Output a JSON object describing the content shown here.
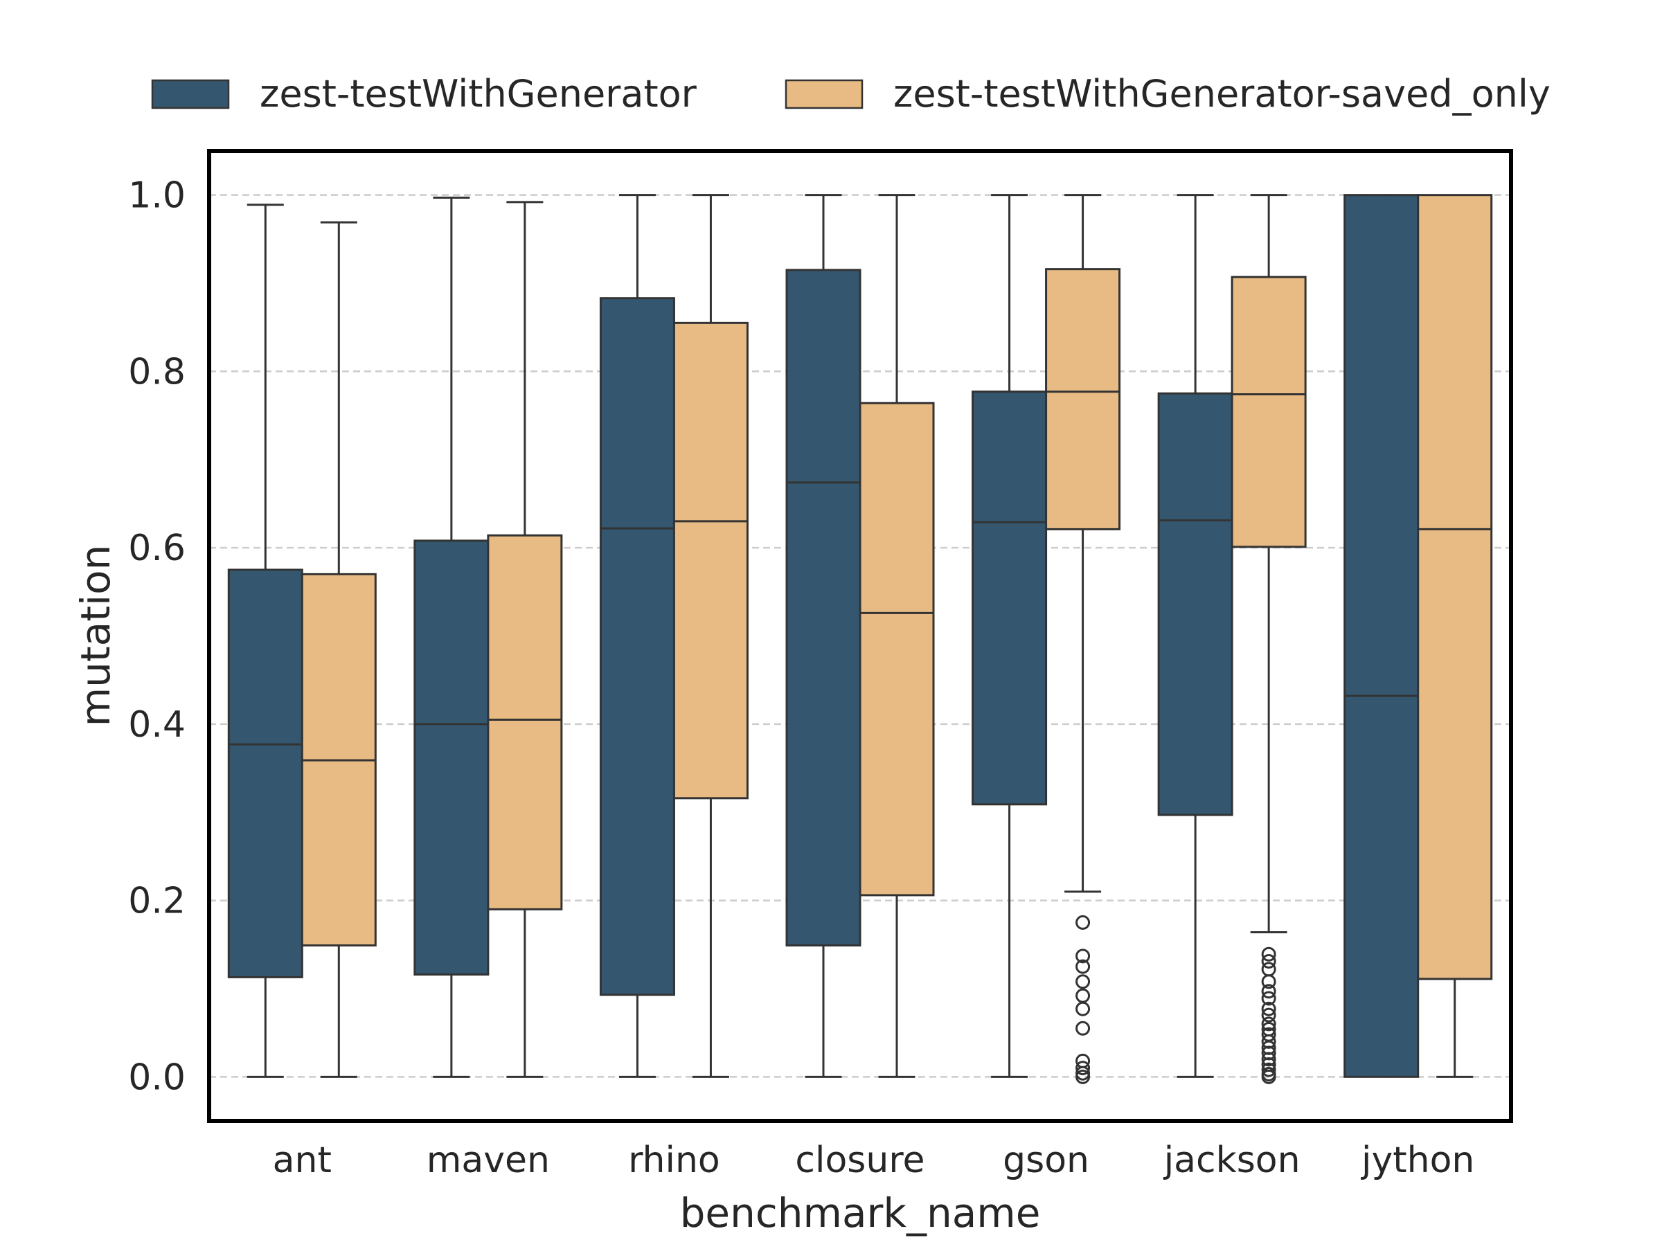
{
  "chart_data": {
    "type": "box",
    "xlabel": "benchmark_name",
    "ylabel": "mutation",
    "ylim": [
      -0.05,
      1.05
    ],
    "yticks": [
      "0.0",
      "0.2",
      "0.4",
      "0.6",
      "0.8",
      "1.0"
    ],
    "grid": "y-dashed",
    "legend_position": "top",
    "categories": [
      "ant",
      "maven",
      "rhino",
      "closure",
      "gson",
      "jackson",
      "jython"
    ],
    "series": [
      {
        "name": "zest-testWithGenerator",
        "color": "#34576f",
        "boxes": [
          {
            "whisker_low": 0.0,
            "q1": 0.113,
            "median": 0.377,
            "q3": 0.575,
            "whisker_high": 0.989,
            "outliers": []
          },
          {
            "whisker_low": 0.0,
            "q1": 0.116,
            "median": 0.4,
            "q3": 0.608,
            "whisker_high": 0.997,
            "outliers": []
          },
          {
            "whisker_low": 0.0,
            "q1": 0.093,
            "median": 0.622,
            "q3": 0.883,
            "whisker_high": 1.0,
            "outliers": []
          },
          {
            "whisker_low": 0.0,
            "q1": 0.149,
            "median": 0.674,
            "q3": 0.915,
            "whisker_high": 1.0,
            "outliers": []
          },
          {
            "whisker_low": 0.0,
            "q1": 0.309,
            "median": 0.629,
            "q3": 0.777,
            "whisker_high": 1.0,
            "outliers": []
          },
          {
            "whisker_low": 0.0,
            "q1": 0.297,
            "median": 0.631,
            "q3": 0.775,
            "whisker_high": 1.0,
            "outliers": []
          },
          {
            "whisker_low": 0.0,
            "q1": 0.0,
            "median": 0.432,
            "q3": 1.0,
            "whisker_high": 1.0,
            "outliers": []
          }
        ]
      },
      {
        "name": "zest-testWithGenerator-saved_only",
        "color": "#e9bb84",
        "boxes": [
          {
            "whisker_low": 0.0,
            "q1": 0.149,
            "median": 0.359,
            "q3": 0.57,
            "whisker_high": 0.969,
            "outliers": []
          },
          {
            "whisker_low": 0.0,
            "q1": 0.19,
            "median": 0.405,
            "q3": 0.614,
            "whisker_high": 0.992,
            "outliers": []
          },
          {
            "whisker_low": 0.0,
            "q1": 0.316,
            "median": 0.63,
            "q3": 0.855,
            "whisker_high": 1.0,
            "outliers": []
          },
          {
            "whisker_low": 0.0,
            "q1": 0.206,
            "median": 0.526,
            "q3": 0.764,
            "whisker_high": 1.0,
            "outliers": []
          },
          {
            "whisker_low": 0.21,
            "q1": 0.621,
            "median": 0.777,
            "q3": 0.916,
            "whisker_high": 1.0,
            "outliers": [
              0.175,
              0.137,
              0.125,
              0.108,
              0.092,
              0.077,
              0.055,
              0.018,
              0.01,
              0.004,
              0.0
            ]
          },
          {
            "whisker_low": 0.164,
            "q1": 0.601,
            "median": 0.774,
            "q3": 0.907,
            "whisker_high": 1.0,
            "outliers": [
              0.139,
              0.131,
              0.122,
              0.108,
              0.097,
              0.089,
              0.077,
              0.07,
              0.06,
              0.054,
              0.048,
              0.04,
              0.033,
              0.027,
              0.02,
              0.014,
              0.008,
              0.003,
              0.0
            ]
          },
          {
            "whisker_low": 0.0,
            "q1": 0.111,
            "median": 0.621,
            "q3": 1.0,
            "whisker_high": 1.0,
            "outliers": []
          }
        ]
      }
    ]
  }
}
